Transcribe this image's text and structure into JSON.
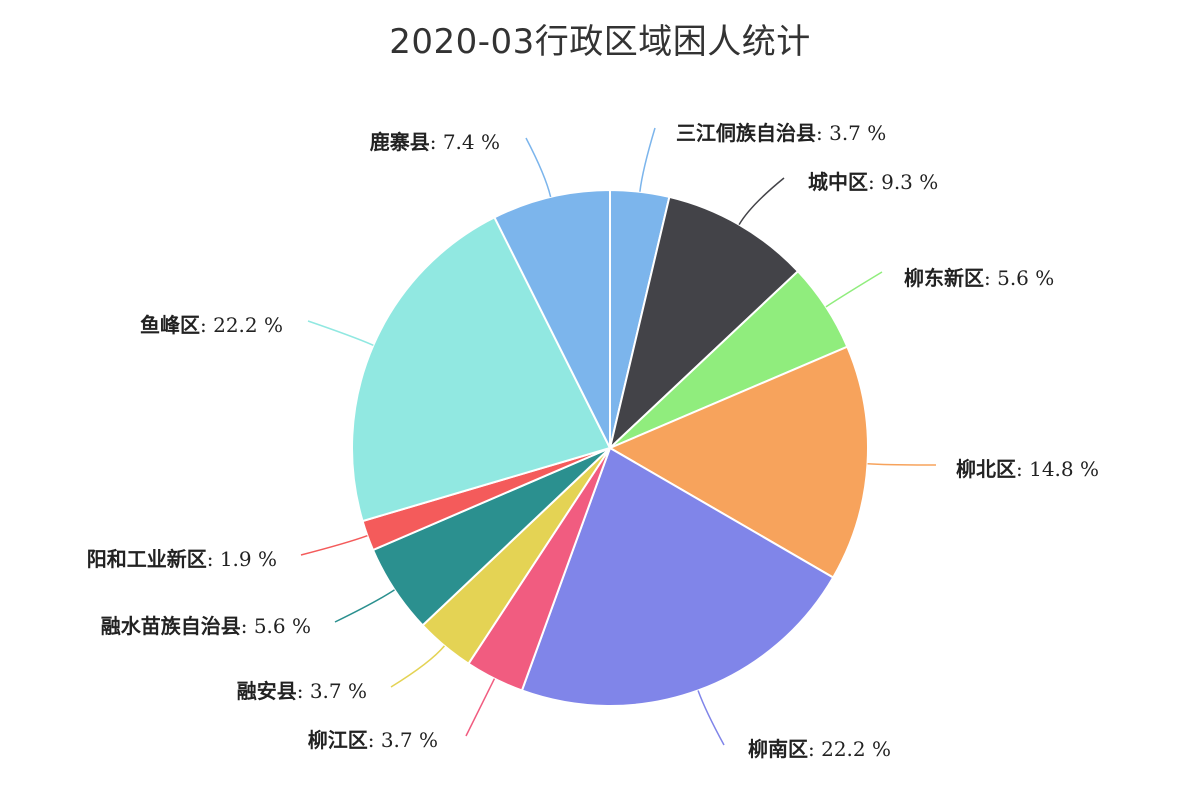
{
  "chart_data": {
    "type": "pie",
    "title": "2020-03行政区域困人统计",
    "unit": "%",
    "slices": [
      {
        "name": "三江侗族自治县",
        "value": 3.7,
        "color": "#7cb5ec"
      },
      {
        "name": "城中区",
        "value": 9.3,
        "color": "#434348"
      },
      {
        "name": "柳东新区",
        "value": 5.6,
        "color": "#90ed7d"
      },
      {
        "name": "柳北区",
        "value": 14.8,
        "color": "#f7a35c"
      },
      {
        "name": "柳南区",
        "value": 22.2,
        "color": "#8085e9"
      },
      {
        "name": "柳江区",
        "value": 3.7,
        "color": "#f15c80"
      },
      {
        "name": "融安县",
        "value": 3.7,
        "color": "#e4d354"
      },
      {
        "name": "融水苗族自治县",
        "value": 5.6,
        "color": "#2b908f"
      },
      {
        "name": "阳和工业新区",
        "value": 1.9,
        "color": "#f45b5b"
      },
      {
        "name": "鱼峰区",
        "value": 22.2,
        "color": "#91e8e1"
      },
      {
        "name": "鹿寨县",
        "value": 7.4,
        "color": "#7cb5ec"
      }
    ]
  }
}
